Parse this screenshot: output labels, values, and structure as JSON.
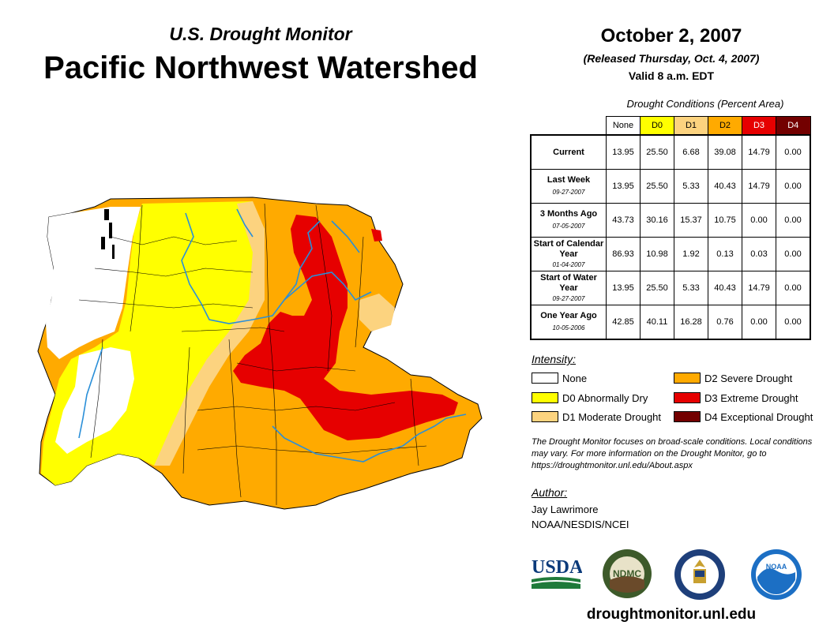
{
  "header": {
    "subtitle": "U.S. Drought Monitor",
    "title": "Pacific Northwest Watershed",
    "date": "October 2, 2007",
    "released": "(Released Thursday, Oct. 4, 2007)",
    "valid": "Valid 8 a.m. EDT"
  },
  "table": {
    "caption": "Drought Conditions (Percent Area)",
    "columns": [
      "None",
      "D0",
      "D1",
      "D2",
      "D3",
      "D4"
    ],
    "column_colors": [
      "#ffffff",
      "#ffff00",
      "#fcd37f",
      "#ffaa00",
      "#e60000",
      "#730000"
    ],
    "rows": [
      {
        "label": "Current",
        "sub": "",
        "values": [
          "13.95",
          "25.50",
          "6.68",
          "39.08",
          "14.79",
          "0.00"
        ]
      },
      {
        "label": "Last Week",
        "sub": "09-27-2007",
        "values": [
          "13.95",
          "25.50",
          "5.33",
          "40.43",
          "14.79",
          "0.00"
        ]
      },
      {
        "label": "3 Months Ago",
        "sub": "07-05-2007",
        "values": [
          "43.73",
          "30.16",
          "15.37",
          "10.75",
          "0.00",
          "0.00"
        ]
      },
      {
        "label": "Start of Calendar Year",
        "sub": "01-04-2007",
        "values": [
          "86.93",
          "10.98",
          "1.92",
          "0.13",
          "0.03",
          "0.00"
        ]
      },
      {
        "label": "Start of Water Year",
        "sub": "09-27-2007",
        "values": [
          "13.95",
          "25.50",
          "5.33",
          "40.43",
          "14.79",
          "0.00"
        ]
      },
      {
        "label": "One Year Ago",
        "sub": "10-05-2006",
        "values": [
          "42.85",
          "40.11",
          "16.28",
          "0.76",
          "0.00",
          "0.00"
        ]
      }
    ]
  },
  "legend": {
    "title": "Intensity:",
    "items": [
      {
        "label": "None",
        "color": "#ffffff"
      },
      {
        "label": "D0 Abnormally Dry",
        "color": "#ffff00"
      },
      {
        "label": "D1 Moderate Drought",
        "color": "#fcd37f"
      },
      {
        "label": "D2 Severe Drought",
        "color": "#ffaa00"
      },
      {
        "label": "D3 Extreme Drought",
        "color": "#e60000"
      },
      {
        "label": "D4 Exceptional Drought",
        "color": "#730000"
      }
    ]
  },
  "note": "The Drought Monitor focuses on broad-scale conditions. Local conditions may vary. For more information on the Drought Monitor, go to https://droughtmonitor.unl.edu/About.aspx",
  "author": {
    "label": "Author:",
    "name": "Jay Lawrimore",
    "org": "NOAA/NESDIS/NCEI"
  },
  "logos": {
    "usda": "USDA",
    "ndmc": "NDMC",
    "noaa": "NOAA"
  },
  "website": "droughtmonitor.unl.edu"
}
